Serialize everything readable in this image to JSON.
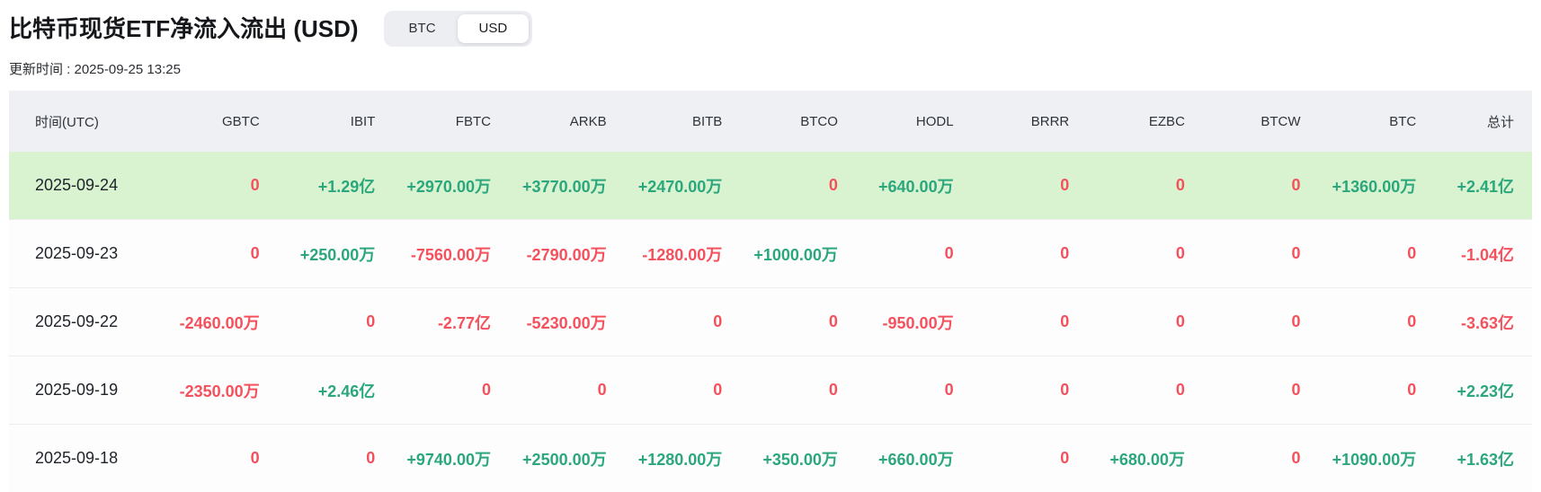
{
  "header": {
    "title": "比特币现货ETF净流入流出 (USD)",
    "toggle": {
      "options": [
        "BTC",
        "USD"
      ],
      "selected": "USD"
    },
    "updated_label": "更新时间 : 2025-09-25 13:25"
  },
  "colors": {
    "positive": "#2ba77d",
    "negative": "#f4515d",
    "highlight_row_bg": "#d9f2cf",
    "header_bg": "#eef0f3"
  },
  "table": {
    "headers": [
      "时间(UTC)",
      "GBTC",
      "IBIT",
      "FBTC",
      "ARKB",
      "BITB",
      "BTCO",
      "HODL",
      "BRRR",
      "EZBC",
      "BTCW",
      "BTC",
      "总计"
    ],
    "rows": [
      {
        "date": "2025-09-24",
        "highlighted": true,
        "values": [
          "0",
          "+1.29亿",
          "+2970.00万",
          "+3770.00万",
          "+2470.00万",
          "0",
          "+640.00万",
          "0",
          "0",
          "0",
          "+1360.00万",
          "+2.41亿"
        ]
      },
      {
        "date": "2025-09-23",
        "highlighted": false,
        "values": [
          "0",
          "+250.00万",
          "-7560.00万",
          "-2790.00万",
          "-1280.00万",
          "+1000.00万",
          "0",
          "0",
          "0",
          "0",
          "0",
          "-1.04亿"
        ]
      },
      {
        "date": "2025-09-22",
        "highlighted": false,
        "values": [
          "-2460.00万",
          "0",
          "-2.77亿",
          "-5230.00万",
          "0",
          "0",
          "-950.00万",
          "0",
          "0",
          "0",
          "0",
          "-3.63亿"
        ]
      },
      {
        "date": "2025-09-19",
        "highlighted": false,
        "values": [
          "-2350.00万",
          "+2.46亿",
          "0",
          "0",
          "0",
          "0",
          "0",
          "0",
          "0",
          "0",
          "0",
          "+2.23亿"
        ]
      },
      {
        "date": "2025-09-18",
        "highlighted": false,
        "values": [
          "0",
          "0",
          "+9740.00万",
          "+2500.00万",
          "+1280.00万",
          "+350.00万",
          "+660.00万",
          "0",
          "+680.00万",
          "0",
          "+1090.00万",
          "+1.63亿"
        ]
      }
    ]
  }
}
